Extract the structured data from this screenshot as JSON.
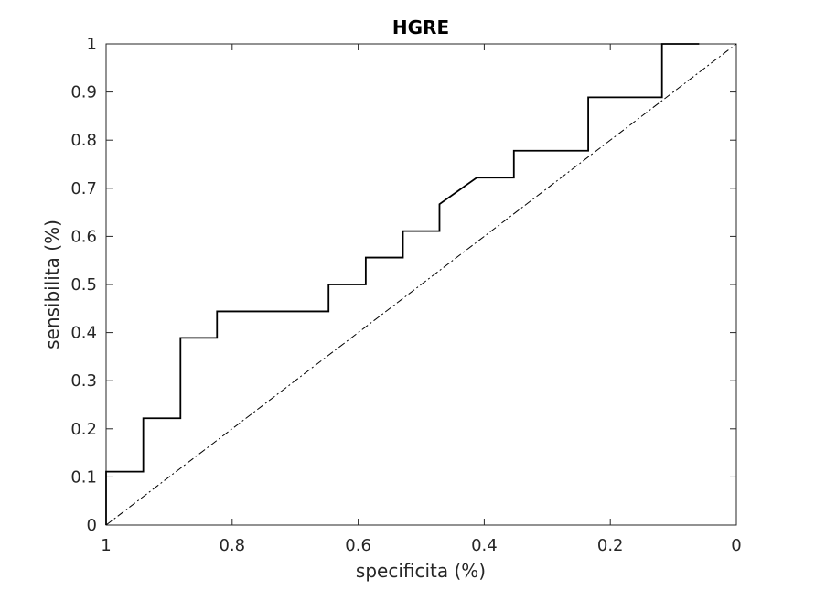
{
  "chart_data": {
    "type": "line",
    "title": "HGRE",
    "xlabel": "specificita (%)",
    "ylabel": "sensibilita (%)",
    "xlim": [
      1,
      0
    ],
    "ylim": [
      0,
      1
    ],
    "x_reversed": true,
    "grid": false,
    "xticks": [
      "1",
      "0.8",
      "0.6",
      "0.4",
      "0.2",
      "0"
    ],
    "yticks": [
      "0",
      "0.1",
      "0.2",
      "0.3",
      "0.4",
      "0.5",
      "0.6",
      "0.7",
      "0.8",
      "0.9",
      "1"
    ],
    "series": [
      {
        "style": "solid",
        "color": "#000000",
        "x": [
          1.0,
          1.0,
          0.941,
          0.941,
          0.882,
          0.882,
          0.824,
          0.824,
          0.647,
          0.647,
          0.588,
          0.588,
          0.529,
          0.529,
          0.471,
          0.471,
          0.412,
          0.353,
          0.353,
          0.235,
          0.235,
          0.118,
          0.118,
          0.059
        ],
        "y": [
          0.0,
          0.111,
          0.111,
          0.222,
          0.222,
          0.389,
          0.389,
          0.444,
          0.444,
          0.5,
          0.5,
          0.556,
          0.556,
          0.611,
          0.611,
          0.667,
          0.722,
          0.722,
          0.778,
          0.778,
          0.889,
          0.889,
          1.0,
          1.0
        ]
      },
      {
        "style": "dash-dot",
        "color": "#000000",
        "x": [
          1,
          0
        ],
        "y": [
          0,
          1
        ]
      }
    ]
  }
}
